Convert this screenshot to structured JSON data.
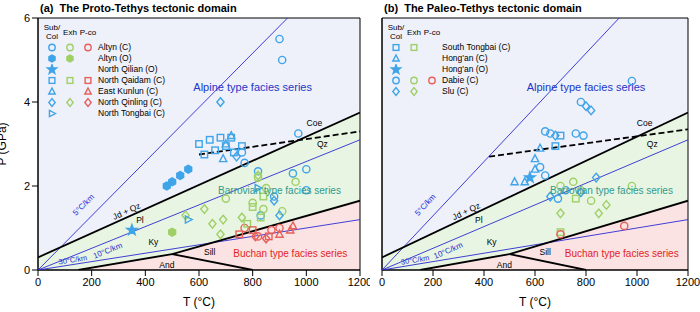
{
  "chart_data": [
    {
      "type": "scatter",
      "panel": "(a)",
      "title": "The Proto-Tethys tectonic domain",
      "x_label": "T (°C)",
      "y_label": "P (GPa)",
      "xlim": [
        0,
        1200
      ],
      "xticks": [
        0,
        200,
        400,
        600,
        800,
        1000,
        1200
      ],
      "ylim": [
        0,
        6
      ],
      "yticks": [
        0,
        2,
        4,
        6
      ],
      "legend": "upper left",
      "legend_columns": [
        "Sub/Col",
        "Exh",
        "P-co"
      ],
      "series": [
        {
          "name": "Altyn (C)",
          "group": "Sub/Col",
          "color": "#3fa4e8",
          "marker": "circle",
          "x": [
            900,
            910,
            970,
            770,
            820,
            950,
            1000,
            830,
            880,
            1000,
            760
          ],
          "values": [
            5.5,
            5.0,
            3.25,
            2.55,
            2.35,
            2.3,
            2.4,
            1.3,
            1.75,
            1.9,
            2.8
          ]
        },
        {
          "name": "Altyn (C)",
          "group": "Exh",
          "color": "#9fd066",
          "marker": "circle",
          "x": [
            820,
            850,
            800,
            840,
            910,
            700,
            960
          ],
          "values": [
            2.2,
            1.95,
            1.6,
            1.45,
            1.4,
            1.7,
            2.1
          ]
        },
        {
          "name": "Altyn (C)",
          "group": "P-co",
          "color": "#e8605a",
          "marker": "circle",
          "x": [
            770,
            870,
            820,
            900
          ],
          "values": [
            1.0,
            0.95,
            0.8,
            1.0
          ]
        },
        {
          "name": "Altyn (O)",
          "group": "Sub/Col",
          "color": "#3fa4e8",
          "marker": "hexagon-filled",
          "x": [
            480,
            500,
            530,
            560
          ],
          "values": [
            2.0,
            2.1,
            2.25,
            2.4
          ]
        },
        {
          "name": "Altyn (O)",
          "group": "Exh",
          "color": "#9fd066",
          "marker": "hexagon-filled",
          "x": [
            500
          ],
          "values": [
            0.9
          ]
        },
        {
          "name": "North Qilian (O)",
          "group": "Sub/Col",
          "color": "#3fa4e8",
          "marker": "star-filled",
          "x": [
            350
          ],
          "values": [
            0.95
          ]
        },
        {
          "name": "North Qaidam (C)",
          "group": "Sub/Col",
          "color": "#3fa4e8",
          "marker": "square",
          "x": [
            600,
            640,
            680,
            720,
            700,
            660,
            730,
            760,
            620
          ],
          "values": [
            3.0,
            3.1,
            3.15,
            3.15,
            2.95,
            2.85,
            2.8,
            2.95,
            2.75
          ]
        },
        {
          "name": "North Qaidam (C)",
          "group": "Exh",
          "color": "#9fd066",
          "marker": "square",
          "x": [
            800,
            840,
            780,
            830
          ],
          "values": [
            1.5,
            1.75,
            1.1,
            1.25
          ]
        },
        {
          "name": "North Qaidam (C)",
          "group": "P-co",
          "color": "#e8605a",
          "marker": "square",
          "x": [
            750,
            800,
            860
          ],
          "values": [
            0.85,
            0.95,
            0.8
          ]
        },
        {
          "name": "East Kunlun (C)",
          "group": "Sub/Col",
          "color": "#3fa4e8",
          "marker": "triangle",
          "x": [
            720,
            700,
            690
          ],
          "values": [
            3.2,
            3.0,
            2.65
          ]
        },
        {
          "name": "East Kunlun (C)",
          "group": "P-co",
          "color": "#e8605a",
          "marker": "triangle",
          "x": [
            950,
            940,
            900
          ],
          "values": [
            1.05,
            0.95,
            0.85
          ]
        },
        {
          "name": "North Qinling (C)",
          "group": "Sub/Col",
          "color": "#3fa4e8",
          "marker": "diamond",
          "x": [
            680,
            740,
            900,
            880
          ],
          "values": [
            4.0,
            2.7,
            1.3,
            1.65
          ]
        },
        {
          "name": "North Qinling (C)",
          "group": "Exh",
          "color": "#9fd066",
          "marker": "diamond",
          "x": [
            550,
            620,
            650,
            690,
            760,
            820,
            680
          ],
          "values": [
            1.3,
            1.45,
            1.1,
            1.2,
            1.25,
            2.25,
            0.85
          ]
        },
        {
          "name": "North Qinling (C)",
          "group": "P-co",
          "color": "#e8605a",
          "marker": "diamond",
          "x": [
            810,
            850
          ],
          "values": [
            0.8,
            0.75
          ]
        },
        {
          "name": "North Tongbai (C)",
          "group": "Sub/Col",
          "color": "#3fa4e8",
          "marker": "triangle-right",
          "x": [
            560,
            820
          ],
          "values": [
            1.2,
            1.95
          ]
        }
      ],
      "lines": {
        "geo5": {
          "name": "5°C/km",
          "color": "#2b2bd4",
          "line_style": "solid",
          "x": [
            0,
            930
          ],
          "values": [
            0,
            6
          ]
        },
        "geo10": {
          "name": "10°C/km",
          "color": "#2b2bd4",
          "line_style": "solid",
          "x": [
            0,
            1200
          ],
          "values": [
            0,
            3.1
          ]
        },
        "geo30": {
          "name": "30°C/km",
          "color": "#2b2bd4",
          "line_style": "solid",
          "x": [
            0,
            1200
          ],
          "values": [
            0,
            1.2
          ]
        },
        "jd_qz": {
          "color": "#000000",
          "line_style": "solid",
          "x": [
            0,
            1200
          ],
          "values": [
            0.3,
            3.75
          ]
        },
        "ky_sill": {
          "color": "#000000",
          "line_style": "solid",
          "x": [
            500,
            1200
          ],
          "values": [
            0.38,
            1.65
          ]
        },
        "ky_and": {
          "color": "#000000",
          "line_style": "solid",
          "x": [
            150,
            500
          ],
          "values": [
            0,
            0.38
          ]
        },
        "and_sill": {
          "color": "#000000",
          "line_style": "solid",
          "x": [
            500,
            800
          ],
          "values": [
            0.38,
            0
          ]
        },
        "coe_qz": {
          "color": "#000000",
          "line_style": "dashed",
          "x": [
            600,
            1200
          ],
          "values": [
            2.75,
            3.3
          ]
        }
      },
      "annotations": {
        "alpine": {
          "text": "Alpine type facies series",
          "color": "#2236c8"
        },
        "barrovian": {
          "text": "Barrovian type facies series",
          "color": "#2f9a8f"
        },
        "buchan": {
          "text": "Buchan type facies series",
          "color": "#e41e1e"
        },
        "jd_qz": {
          "text": "Jd + Qz",
          "color": "#000000"
        },
        "pl": {
          "text": "Pl",
          "color": "#000000"
        },
        "ky": {
          "text": "Ky",
          "color": "#000000"
        },
        "sill": {
          "text": "Sill",
          "color": "#000000"
        },
        "and": {
          "text": "And",
          "color": "#000000"
        },
        "coe": {
          "text": "Coe",
          "color": "#000000"
        },
        "qz": {
          "text": "Qz",
          "color": "#000000"
        }
      }
    },
    {
      "type": "scatter",
      "panel": "(b)",
      "title": "The Paleo-Tethys tectonic domain",
      "x_label": "T (°C)",
      "xlim": [
        0,
        1200
      ],
      "xticks": [
        0,
        200,
        400,
        600,
        800,
        1000,
        1200
      ],
      "ylim": [
        0,
        6
      ],
      "yticks": [
        0,
        2,
        4,
        6
      ],
      "tick_labels": "x",
      "legend": "upper left",
      "legend_columns": [
        "Sub/Col",
        "Exh",
        "P-co"
      ],
      "series": [
        {
          "name": "South Tongbai (C)",
          "group": "Sub/Col",
          "color": "#3fa4e8",
          "marker": "square",
          "x": [
            680,
            700
          ],
          "values": [
            2.95,
            3.2
          ]
        },
        {
          "name": "South Tongbai (C)",
          "group": "Exh",
          "color": "#9fd066",
          "marker": "square",
          "x": [
            700,
            760
          ],
          "values": [
            0.9,
            1.7
          ]
        },
        {
          "name": "Hong'an (C)",
          "group": "Sub/Col",
          "color": "#3fa4e8",
          "marker": "triangle",
          "x": [
            520,
            560,
            600,
            620,
            600
          ],
          "values": [
            2.1,
            2.1,
            2.65,
            2.9,
            2.4
          ]
        },
        {
          "name": "Hong'an (O)",
          "group": "Sub/Col",
          "color": "#3fa4e8",
          "marker": "star-filled",
          "x": [
            580
          ],
          "values": [
            2.2
          ]
        },
        {
          "name": "Dabie (C)",
          "group": "Sub/Col",
          "color": "#3fa4e8",
          "marker": "circle",
          "x": [
            660,
            640,
            780,
            760,
            790,
            980,
            640,
            620,
            720,
            690
          ],
          "values": [
            3.25,
            3.3,
            4.0,
            3.25,
            3.2,
            4.5,
            2.25,
            2.45,
            1.9,
            1.7
          ]
        },
        {
          "name": "Dabie (C)",
          "group": "Exh",
          "color": "#9fd066",
          "marker": "circle",
          "x": [
            780,
            820,
            980,
            700,
            750
          ],
          "values": [
            1.9,
            1.65,
            2.0,
            2.0,
            2.1
          ]
        },
        {
          "name": "Dabie (C)",
          "group": "P-co",
          "color": "#e8605a",
          "marker": "circle",
          "x": [
            700,
            950
          ],
          "values": [
            0.85,
            1.05
          ]
        },
        {
          "name": "Slu (C)",
          "group": "Sub/Col",
          "color": "#3fa4e8",
          "marker": "diamond",
          "x": [
            680,
            800,
            820,
            840,
            780,
            660
          ],
          "values": [
            3.2,
            3.9,
            3.8,
            2.2,
            1.85,
            1.75
          ]
        },
        {
          "name": "Slu (C)",
          "group": "Exh",
          "color": "#9fd066",
          "marker": "diamond",
          "x": [
            700,
            850,
            880
          ],
          "values": [
            1.35,
            1.35,
            1.55
          ]
        }
      ],
      "lines": {
        "geo5": {
          "name": "5°C/km",
          "color": "#2b2bd4",
          "line_style": "solid",
          "x": [
            0,
            930
          ],
          "values": [
            0,
            6
          ]
        },
        "geo10": {
          "name": "10°C/km",
          "color": "#2b2bd4",
          "line_style": "solid",
          "x": [
            0,
            1200
          ],
          "values": [
            0,
            3.1
          ]
        },
        "geo30": {
          "name": "30°C/km",
          "color": "#2b2bd4",
          "line_style": "solid",
          "x": [
            0,
            1200
          ],
          "values": [
            0,
            1.2
          ]
        },
        "jd_qz": {
          "color": "#000000",
          "line_style": "solid",
          "x": [
            0,
            1200
          ],
          "values": [
            0.3,
            3.75
          ]
        },
        "ky_sill": {
          "color": "#000000",
          "line_style": "solid",
          "x": [
            500,
            1200
          ],
          "values": [
            0.38,
            1.65
          ]
        },
        "ky_and": {
          "color": "#000000",
          "line_style": "solid",
          "x": [
            150,
            500
          ],
          "values": [
            0,
            0.38
          ]
        },
        "and_sill": {
          "color": "#000000",
          "line_style": "solid",
          "x": [
            500,
            800
          ],
          "values": [
            0.38,
            0
          ]
        },
        "coe_qz": {
          "color": "#000000",
          "line_style": "dashed",
          "x": [
            420,
            1200
          ],
          "values": [
            2.7,
            3.35
          ]
        }
      },
      "annotations": {
        "alpine": {
          "text": "Alpine type facies series",
          "color": "#2236c8"
        },
        "barrovian": {
          "text": "Barrovian type facies series",
          "color": "#2f9a8f"
        },
        "buchan": {
          "text": "Buchan type facies series",
          "color": "#e41e1e"
        },
        "jd_qz": {
          "text": "Jd + Qz",
          "color": "#000000"
        },
        "pl": {
          "text": "Pl",
          "color": "#000000"
        },
        "ky": {
          "text": "Ky",
          "color": "#000000"
        },
        "sill": {
          "text": "Sill",
          "color": "#000000"
        },
        "and": {
          "text": "And",
          "color": "#000000"
        },
        "coe": {
          "text": "Coe",
          "color": "#000000"
        },
        "qz": {
          "text": "Qz",
          "color": "#000000"
        }
      }
    }
  ]
}
